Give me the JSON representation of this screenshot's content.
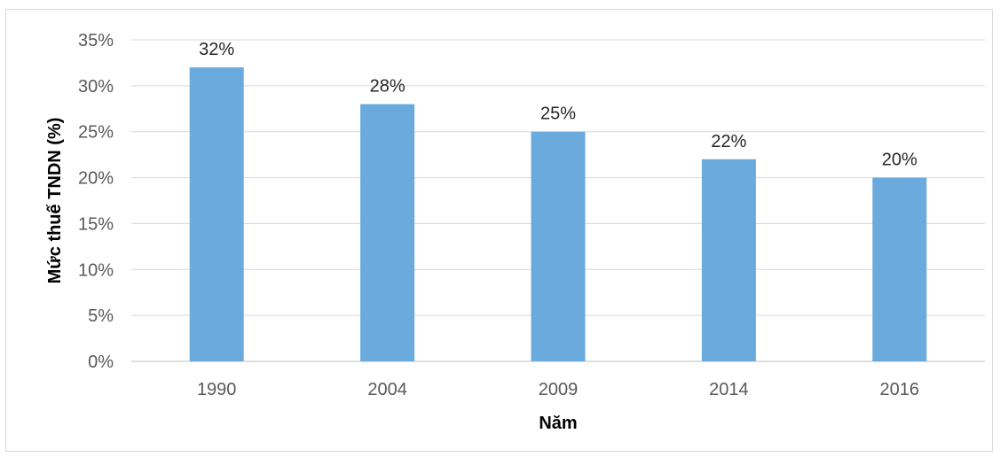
{
  "chart_data": {
    "type": "bar",
    "categories": [
      "1990",
      "2004",
      "2009",
      "2014",
      "2016"
    ],
    "values": [
      32,
      28,
      25,
      22,
      20
    ],
    "data_labels": [
      "32%",
      "28%",
      "25%",
      "22%",
      "20%"
    ],
    "title": "",
    "xlabel": "Năm",
    "ylabel": "Mức thuế TNDN (%)",
    "ylim": [
      0,
      35
    ],
    "yticks": [
      0,
      5,
      10,
      15,
      20,
      25,
      30,
      35
    ],
    "ytick_labels": [
      "0%",
      "5%",
      "10%",
      "15%",
      "20%",
      "25%",
      "30%",
      "35%"
    ],
    "grid": true,
    "legend": "none",
    "colors": {
      "bar": "#6aaadc",
      "grid": "#d9d9d9",
      "axis": "#bfbfbf"
    }
  }
}
